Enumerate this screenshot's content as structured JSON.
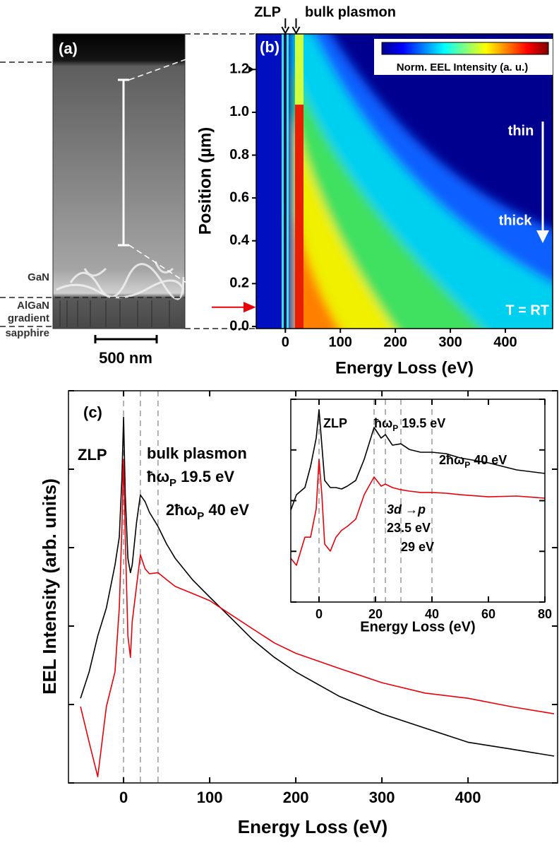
{
  "image_panel": {
    "label": "(a)",
    "layers": [
      "GaN",
      "AlGaN",
      "gradient",
      "sapphire"
    ],
    "scale_bar": "500 nm"
  },
  "chart_data": [
    {
      "type": "heatmap",
      "panel_label": "(b)",
      "xlabel": "Energy Loss (eV)",
      "ylabel": "Position (µm)",
      "xlim": [
        -53,
        486
      ],
      "ylim": [
        -0.01,
        1.366
      ],
      "xticks": [
        0,
        100,
        200,
        300,
        400
      ],
      "yticks": [
        {
          "value": 0,
          "label": "0.0"
        },
        0.2,
        0.4,
        0.6,
        0.8,
        {
          "value": 1,
          "label": "1.0"
        },
        1.2
      ],
      "colormap": [
        "#00008f",
        "#0000ff",
        "#0080ff",
        "#00ffff",
        "#80ff80",
        "#ffff00",
        "#ff8000",
        "#ff0000",
        "#800000"
      ],
      "colorbar_label": "Norm. EEL Intensity (a. u.)",
      "peaks": [
        {
          "label": "ZLP",
          "x": 0
        },
        {
          "label": "bulk plasmon",
          "x": 19.5
        }
      ],
      "position_markers": [
        {
          "y": 1.2,
          "color": "#000000"
        },
        {
          "y": 0.09,
          "color": "#e8000b"
        }
      ],
      "annotations": {
        "thin": "thin",
        "thick": "thick",
        "temperature": "T = RT"
      }
    },
    {
      "type": "line",
      "panel_label": "(c)",
      "xlabel": "Energy Loss (eV)",
      "ylabel": "EEL Intensity (arb. units)",
      "log_y": true,
      "xlim": [
        -64,
        504
      ],
      "ylim": [
        1,
        100000
      ],
      "xticks": [
        0,
        100,
        200,
        300,
        400
      ],
      "yticks": [
        1,
        10,
        100,
        1000,
        10000,
        100000
      ],
      "vlines": [
        0,
        19.5,
        40
      ],
      "annotations": {
        "zlp": "ZLP",
        "plasmon": "bulk plasmon",
        "p1": [
          "ħω",
          "P",
          " 19.5 eV"
        ],
        "p2": [
          "2ħω",
          "P",
          " 40 eV"
        ]
      },
      "x": [
        -50,
        -40,
        -30,
        -20,
        -10,
        -5,
        -2,
        0,
        2,
        5,
        8,
        10,
        15,
        19.5,
        25,
        30,
        40,
        50,
        60,
        80,
        100,
        125,
        150,
        175,
        200,
        250,
        300,
        350,
        400,
        450,
        500
      ],
      "series": [
        {
          "color": "#000000",
          "values": [
            12,
            26,
            75,
            170,
            600,
            1360,
            7200,
            46000,
            4700,
            730,
            480,
            600,
            2070,
            4700,
            3850,
            2820,
            1860,
            1110,
            730,
            390,
            234,
            126,
            67,
            40,
            26,
            12.8,
            7.6,
            5,
            3.3,
            2.7,
            2.2
          ]
        },
        {
          "color": "#e8000b",
          "values": [
            9.4,
            3.3,
            1.2,
            9.4,
            26,
            170,
            1680,
            13400,
            1360,
            75,
            40,
            113,
            320,
            810,
            537,
            464,
            480,
            390,
            320,
            260,
            211,
            139,
            92,
            61,
            45,
            29,
            19,
            14,
            12,
            9.4,
            7.6
          ]
        }
      ]
    },
    {
      "type": "line",
      "xlabel": "Energy Loss (eV)",
      "log_y": true,
      "xlim": [
        -10,
        80
      ],
      "ylim": [
        1,
        10000
      ],
      "xticks": [
        0,
        20,
        40,
        60,
        80
      ],
      "yticks": [
        1,
        10,
        100,
        1000,
        10000
      ],
      "vlines": [
        0,
        19.5,
        23.5,
        29,
        40
      ],
      "annotations": {
        "zlp": "ZLP",
        "p1": [
          "ħω",
          "P",
          " 19.5 eV"
        ],
        "p2": [
          "2ħω",
          "P",
          " 40 eV"
        ],
        "trans": [
          "3d",
          " →",
          "p"
        ],
        "e1": "23.5 eV",
        "e2": "29 eV"
      },
      "x": [
        -10,
        -8,
        -5,
        -3,
        -1,
        0,
        1,
        2,
        4,
        6,
        8,
        10,
        13,
        16,
        19.5,
        22,
        23.5,
        26,
        29,
        32,
        36,
        40,
        45,
        50,
        60,
        70,
        80
      ],
      "series": [
        {
          "color": "#000000",
          "values": [
            65,
            131,
            181,
            474,
            1710,
            6180,
            1240,
            250,
            181,
            181,
            170,
            193,
            250,
            653,
            2770,
            1710,
            2010,
            1240,
            1320,
            1020,
            900,
            900,
            845,
            697,
            557,
            404,
            344
          ]
        },
        {
          "color": "#e8000b",
          "values": [
            7.3,
            5.3,
            19,
            19,
            69,
            653,
            131,
            13.9,
            10.1,
            19,
            26,
            31,
            43,
            131,
            293,
            193,
            212,
            181,
            164,
            154,
            145,
            145,
            140,
            131,
            119,
            123,
            112
          ]
        }
      ]
    }
  ]
}
